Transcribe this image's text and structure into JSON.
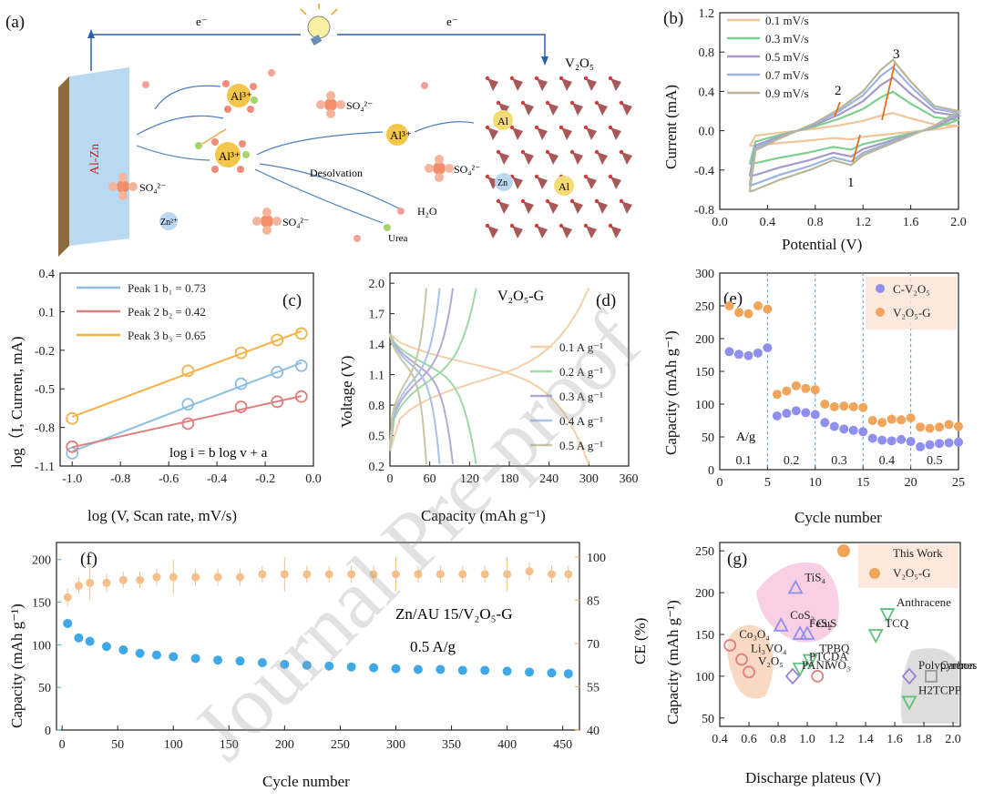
{
  "figure": {
    "watermark": "Journal Pre-proof"
  },
  "chart_data": [
    {
      "panel": "(a)",
      "type": "schematic",
      "labels": {
        "electrode": "Al-Zn",
        "electron_left": "e⁻",
        "electron_right": "e⁻",
        "cathode": "V₂O₅",
        "desolvation": "Desolvation",
        "water": "H₂O",
        "urea": "Urea",
        "sulfate": "SO₄²⁻",
        "zinc_ion": "Zn²⁺",
        "al_ion": "Al³⁺",
        "al": "Al",
        "zn": "Zn"
      }
    },
    {
      "panel": "(b)",
      "type": "line",
      "title": "",
      "xlabel": "Potential (V)",
      "ylabel": "Current (mA)",
      "xlim": [
        0.0,
        2.0
      ],
      "ylim": [
        -0.8,
        1.2
      ],
      "xticks": [
        "0.0",
        "0.4",
        "0.8",
        "1.2",
        "1.6",
        "2.0"
      ],
      "yticks": [
        "-0.8",
        "-0.4",
        "0.0",
        "0.4",
        "0.8",
        "1.2"
      ],
      "peak_labels": [
        "1",
        "2",
        "3"
      ],
      "series": [
        {
          "name": "0.1 mV/s",
          "color": "#f2c49b",
          "scale": 0.25
        },
        {
          "name": "0.3 mV/s",
          "color": "#7fcf8f",
          "scale": 0.55
        },
        {
          "name": "0.5 mV/s",
          "color": "#a79ac9",
          "scale": 0.75
        },
        {
          "name": "0.7 mV/s",
          "color": "#9cb4e0",
          "scale": 0.9
        },
        {
          "name": "0.9 mV/s",
          "color": "#b9b59a",
          "scale": 1.0
        }
      ],
      "cv_shape": {
        "upper": [
          [
            0.25,
            -0.62
          ],
          [
            0.3,
            -0.2
          ],
          [
            0.5,
            -0.08
          ],
          [
            0.8,
            0.08
          ],
          [
            1.0,
            0.22
          ],
          [
            1.2,
            0.4
          ],
          [
            1.35,
            0.62
          ],
          [
            1.45,
            0.72
          ],
          [
            1.6,
            0.5
          ],
          [
            1.8,
            0.25
          ],
          [
            2.0,
            0.2
          ]
        ],
        "lower": [
          [
            2.0,
            0.2
          ],
          [
            1.8,
            0.05
          ],
          [
            1.6,
            -0.05
          ],
          [
            1.4,
            -0.15
          ],
          [
            1.2,
            -0.25
          ],
          [
            1.1,
            -0.35
          ],
          [
            0.95,
            -0.3
          ],
          [
            0.75,
            -0.4
          ],
          [
            0.5,
            -0.5
          ],
          [
            0.3,
            -0.6
          ],
          [
            0.25,
            -0.62
          ]
        ]
      }
    },
    {
      "panel": "(c)",
      "type": "scatter",
      "xlabel": "log (V, Scan rate, mV/s)",
      "ylabel": "log（I, Current, mA)",
      "xlim": [
        -1.0,
        0.0
      ],
      "ylim": [
        -1.1,
        0.4
      ],
      "xticks": [
        "-1.0",
        "-0.8",
        "-0.6",
        "-0.4",
        "-0.2",
        "0.0"
      ],
      "yticks": [
        "-1.1",
        "-0.8",
        "-0.5",
        "-0.2",
        "0.1",
        "0.4"
      ],
      "x": [
        -1.0,
        -0.52,
        -0.3,
        -0.15,
        -0.05
      ],
      "annotation": "log i = b log v + a",
      "series": [
        {
          "name": "Peak 1 b₁ = 0.73",
          "color": "#8fbfe0",
          "values": [
            -1.0,
            -0.62,
            -0.46,
            -0.37,
            -0.32
          ]
        },
        {
          "name": "Peak 2 b₂ = 0.42",
          "color": "#e07f80",
          "values": [
            -0.95,
            -0.77,
            -0.64,
            -0.6,
            -0.56
          ]
        },
        {
          "name": "Peak 3 b₃ = 0.65",
          "color": "#f2b24c",
          "values": [
            -0.73,
            -0.36,
            -0.22,
            -0.12,
            -0.07
          ]
        }
      ]
    },
    {
      "panel": "(d)",
      "type": "line",
      "title": "V₂O₅-G",
      "xlabel": "Capacity (mAh g⁻¹)",
      "ylabel": "Voltage (V)",
      "xlim": [
        0,
        360
      ],
      "ylim": [
        0.2,
        2.1
      ],
      "xticks": [
        "0",
        "60",
        "120",
        "180",
        "240",
        "300",
        "360"
      ],
      "yticks": [
        "0.2",
        "0.5",
        "0.8",
        "1.1",
        "1.4",
        "1.7",
        "2.0"
      ],
      "series": [
        {
          "name": "0.1 A g⁻¹",
          "color": "#f5cfa8",
          "capacity": 300
        },
        {
          "name": "0.2 A g⁻¹",
          "color": "#9fd9a8",
          "capacity": 130
        },
        {
          "name": "0.3 A g⁻¹",
          "color": "#b3a9d6",
          "capacity": 95
        },
        {
          "name": "0.4 A g⁻¹",
          "color": "#a7c2e8",
          "capacity": 75
        },
        {
          "name": "0.5 A g⁻¹",
          "color": "#c8c6a3",
          "capacity": 55
        }
      ]
    },
    {
      "panel": "(e)",
      "type": "scatter",
      "xlabel": "Cycle number",
      "ylabel": "Capacity (mAh g⁻¹)",
      "xlim": [
        0,
        25
      ],
      "ylim": [
        0,
        300
      ],
      "xticks": [
        "0",
        "5",
        "10",
        "15",
        "20",
        "25"
      ],
      "yticks": [
        "0",
        "50",
        "100",
        "150",
        "200",
        "250",
        "300"
      ],
      "rate_unit": "A/g",
      "rates": [
        "0.1",
        "0.2",
        "0.3",
        "0.4",
        "0.5"
      ],
      "dividers": [
        5,
        10,
        15,
        20
      ],
      "x": [
        1,
        2,
        3,
        4,
        5,
        6,
        7,
        8,
        9,
        10,
        11,
        12,
        13,
        14,
        15,
        16,
        17,
        18,
        19,
        20,
        21,
        22,
        23,
        24,
        25
      ],
      "series": [
        {
          "name": "C-V₂O₅",
          "color": "#8f8ff0",
          "values": [
            180,
            176,
            174,
            178,
            186,
            82,
            86,
            90,
            87,
            84,
            72,
            66,
            62,
            60,
            58,
            48,
            45,
            44,
            46,
            43,
            35,
            38,
            40,
            41,
            42
          ]
        },
        {
          "name": "V₂O₅-G",
          "color": "#f0a55a",
          "values": [
            250,
            240,
            238,
            250,
            245,
            115,
            120,
            128,
            124,
            122,
            100,
            96,
            97,
            96,
            95,
            75,
            72,
            77,
            76,
            79,
            65,
            63,
            65,
            69,
            66
          ]
        }
      ]
    },
    {
      "panel": "(f)",
      "type": "scatter",
      "xlabel": "Cycle number",
      "ylabel": "Capacity (mAh g⁻¹)",
      "ylabel_right": "CE (%)",
      "xlim": [
        0,
        460
      ],
      "ylim": [
        0,
        220
      ],
      "ylim_right": [
        40,
        105
      ],
      "xticks": [
        "0",
        "50",
        "100",
        "150",
        "200",
        "250",
        "300",
        "350",
        "400",
        "450"
      ],
      "yticks": [
        "0",
        "50",
        "100",
        "150",
        "200"
      ],
      "yticks_right": [
        "40",
        "55",
        "70",
        "85",
        "100"
      ],
      "annotation_1": "Zn/AU 15/V₂O₅-G",
      "annotation_2": "0.5 A/g",
      "series": [
        {
          "name": "Capacity",
          "color": "#3fa9e8",
          "points": [
            [
              5,
              125
            ],
            [
              15,
              108
            ],
            [
              25,
              104
            ],
            [
              40,
              98
            ],
            [
              55,
              94
            ],
            [
              70,
              90
            ],
            [
              85,
              88
            ],
            [
              100,
              86
            ],
            [
              120,
              84
            ],
            [
              140,
              82
            ],
            [
              160,
              81
            ],
            [
              180,
              79
            ],
            [
              200,
              77
            ],
            [
              220,
              76
            ],
            [
              240,
              75
            ],
            [
              260,
              74
            ],
            [
              280,
              73
            ],
            [
              300,
              72
            ],
            [
              320,
              71
            ],
            [
              340,
              71
            ],
            [
              360,
              70
            ],
            [
              380,
              70
            ],
            [
              400,
              69
            ],
            [
              420,
              68
            ],
            [
              440,
              67
            ],
            [
              455,
              66
            ]
          ]
        },
        {
          "name": "CE",
          "color": "#f5c08a",
          "points": [
            [
              5,
              86
            ],
            [
              15,
              90
            ],
            [
              25,
              91
            ],
            [
              40,
              91
            ],
            [
              55,
              92
            ],
            [
              70,
              92
            ],
            [
              85,
              93
            ],
            [
              100,
              93
            ],
            [
              120,
              93
            ],
            [
              140,
              93
            ],
            [
              160,
              93
            ],
            [
              180,
              94
            ],
            [
              200,
              94
            ],
            [
              220,
              94
            ],
            [
              240,
              94
            ],
            [
              260,
              94
            ],
            [
              280,
              94
            ],
            [
              300,
              94
            ],
            [
              320,
              94
            ],
            [
              340,
              94
            ],
            [
              360,
              94
            ],
            [
              380,
              94
            ],
            [
              400,
              94
            ],
            [
              420,
              95
            ],
            [
              440,
              94
            ],
            [
              455,
              94
            ]
          ]
        }
      ]
    },
    {
      "panel": "(g)",
      "type": "scatter",
      "xlabel": "Discharge plateus (V)",
      "ylabel": "Capacity (mAh g⁻¹)",
      "xlim": [
        0.4,
        2.05
      ],
      "ylim": [
        40,
        260
      ],
      "xticks": [
        "0.4",
        "0.6",
        "0.8",
        "1.0",
        "1.2",
        "1.4",
        "1.6",
        "1.8",
        "2.0"
      ],
      "yticks": [
        "50",
        "100",
        "150",
        "200",
        "250"
      ],
      "legend": [
        "This Work",
        "V₂O₅-G"
      ],
      "points": [
        {
          "label": "This Work",
          "x": 1.25,
          "y": 250,
          "shape": "dot",
          "color": "#f0a55a"
        },
        {
          "label": "TiS₄",
          "x": 0.92,
          "y": 205,
          "shape": "triangle",
          "color": "#8f8ff0"
        },
        {
          "label": "CoS₂",
          "x": 0.82,
          "y": 160,
          "shape": "triangle",
          "color": "#8f8ff0"
        },
        {
          "label": "FeS₂",
          "x": 0.95,
          "y": 150,
          "shape": "triangle",
          "color": "#8f8ff0"
        },
        {
          "label": "CuS",
          "x": 1.0,
          "y": 150,
          "shape": "triangle",
          "color": "#8f8ff0"
        },
        {
          "label": "Co₃O₄",
          "x": 0.47,
          "y": 137,
          "shape": "circle",
          "color": "#e07f80"
        },
        {
          "label": "Li₃VO₄",
          "x": 0.55,
          "y": 120,
          "shape": "circle",
          "color": "#e07f80"
        },
        {
          "label": "V₂O₅",
          "x": 0.6,
          "y": 105,
          "shape": "circle",
          "color": "#e07f80"
        },
        {
          "label": "WO₃",
          "x": 1.07,
          "y": 100,
          "shape": "circle",
          "color": "#e07f80"
        },
        {
          "label": "Anthracene",
          "x": 1.55,
          "y": 175,
          "shape": "down-triangle",
          "color": "#5fc27a"
        },
        {
          "label": "TCQ",
          "x": 1.47,
          "y": 150,
          "shape": "down-triangle",
          "color": "#5fc27a"
        },
        {
          "label": "TPBQ",
          "x": 1.02,
          "y": 120,
          "shape": "down-triangle",
          "color": "#5fc27a"
        },
        {
          "label": "PTCDA",
          "x": 0.95,
          "y": 110,
          "shape": "down-triangle",
          "color": "#5fc27a"
        },
        {
          "label": "H2TCPP",
          "x": 1.7,
          "y": 70,
          "shape": "down-triangle",
          "color": "#5fc27a"
        },
        {
          "label": "PANI",
          "x": 0.9,
          "y": 100,
          "shape": "diamond",
          "color": "#9b7fd0"
        },
        {
          "label": "Polypyrenes",
          "x": 1.7,
          "y": 100,
          "shape": "diamond",
          "color": "#9b7fd0"
        },
        {
          "label": "Carbon",
          "x": 1.85,
          "y": 100,
          "shape": "square",
          "color": "#999999"
        }
      ]
    }
  ]
}
